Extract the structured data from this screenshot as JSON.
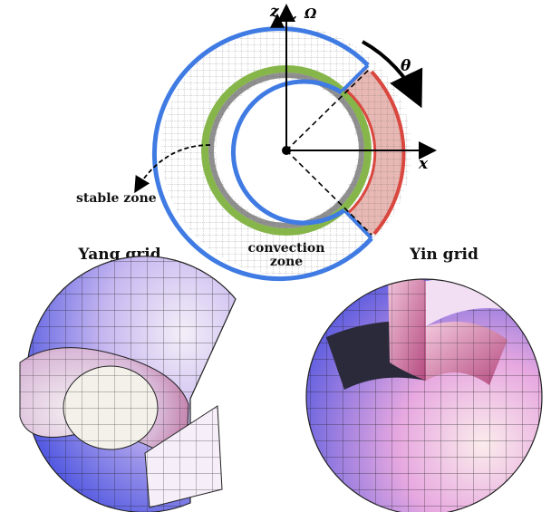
{
  "labels": {
    "axis_z": "z",
    "axis_x": "x",
    "rotation": "Ω",
    "angle": "θ",
    "stable_zone": "stable zone",
    "convection_line1": "convection",
    "convection_line2": "zone",
    "yang_grid": "Yang grid",
    "yin_grid": "Yin grid"
  },
  "colors": {
    "outer_boundary": "#3f7be3",
    "inner_boundary": "#3f7be3",
    "sector_boundary": "#d9473f",
    "sector_fill": "#e8b9b4",
    "green_layer": "#86b64a",
    "dark_layer": "#6b6b6b",
    "grid_line": "#222222",
    "sphere_blue": "#4a52e0",
    "sphere_pink": "#e7a8e0"
  }
}
